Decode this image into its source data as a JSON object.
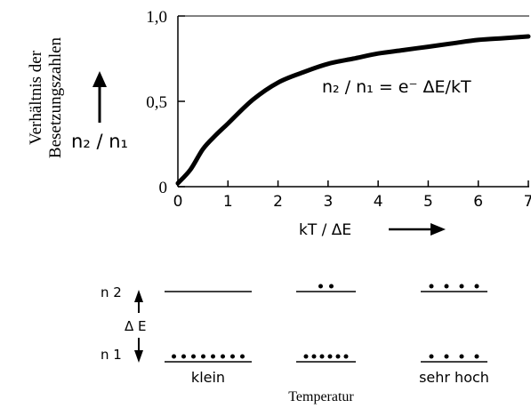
{
  "chart_data": {
    "type": "line",
    "ylabel_line1": "Verhältnis der",
    "ylabel_line2": "Besetzungszahlen",
    "y_symbol": "n₂ / n₁",
    "xlabel": "kT / ΔE",
    "formula": "n₂ / n₁ = e⁻ ΔE/kT",
    "xlim": [
      0,
      7
    ],
    "ylim": [
      0,
      1
    ],
    "x_ticks": [
      "0",
      "1",
      "2",
      "3",
      "4",
      "5",
      "6",
      "7"
    ],
    "y_ticks": [
      "0",
      "0,5",
      "1,0"
    ],
    "curve": {
      "x": [
        0,
        0.25,
        0.5,
        0.75,
        1,
        1.5,
        2,
        2.5,
        3,
        3.5,
        4,
        4.5,
        5,
        5.5,
        6,
        6.5,
        7
      ],
      "y": [
        0.02,
        0.1,
        0.22,
        0.3,
        0.37,
        0.51,
        0.61,
        0.67,
        0.72,
        0.75,
        0.78,
        0.8,
        0.82,
        0.84,
        0.86,
        0.87,
        0.88
      ]
    }
  },
  "levels": {
    "upper_label": "n 2",
    "lower_label": "n 1",
    "delta_label": "Δ E",
    "temperature_label": "Temperatur",
    "columns": [
      {
        "caption": "klein",
        "upper_dots": 0,
        "lower_dots": 8
      },
      {
        "caption": "",
        "upper_dots": 2,
        "lower_dots": 6
      },
      {
        "caption": "sehr hoch",
        "upper_dots": 4,
        "lower_dots": 4
      }
    ]
  }
}
